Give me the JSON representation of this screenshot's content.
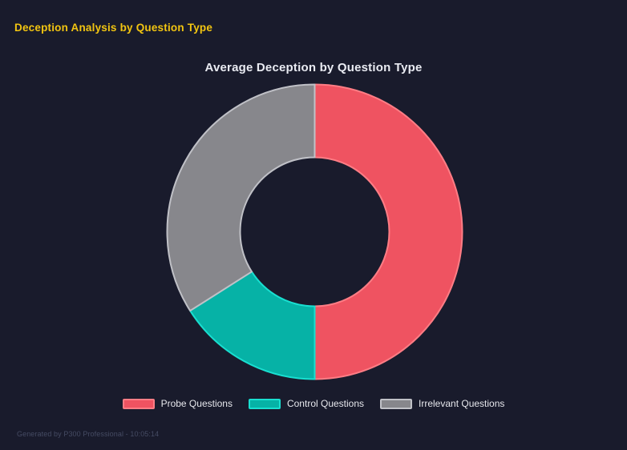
{
  "page": {
    "title": "Deception Analysis by Question Type",
    "title_color": "#f2c511",
    "background_color": "#191b2c"
  },
  "chart_data": {
    "type": "pie",
    "subtype": "donut",
    "title": "Average Deception by Question Type",
    "title_color": "#e9ebf2",
    "categories": [
      "Probe Questions",
      "Control Questions",
      "Irrelevant Questions"
    ],
    "values": [
      50,
      16,
      34
    ],
    "unit": "percent of total arc",
    "cutout_ratio": 0.5,
    "start_angle_deg": 0,
    "direction": "clockwise",
    "colors": [
      "#ef5361",
      "#06b2a6",
      "#87878c"
    ],
    "border_colors": [
      "#ff7d85",
      "#19dfd0",
      "#c0c1c7"
    ],
    "legend_position": "bottom",
    "legend_text_color": "#e6e7ec",
    "grid": false
  },
  "footer": {
    "text": "Generated by P300 Professional - 10:05:14",
    "color": "#454b63"
  }
}
